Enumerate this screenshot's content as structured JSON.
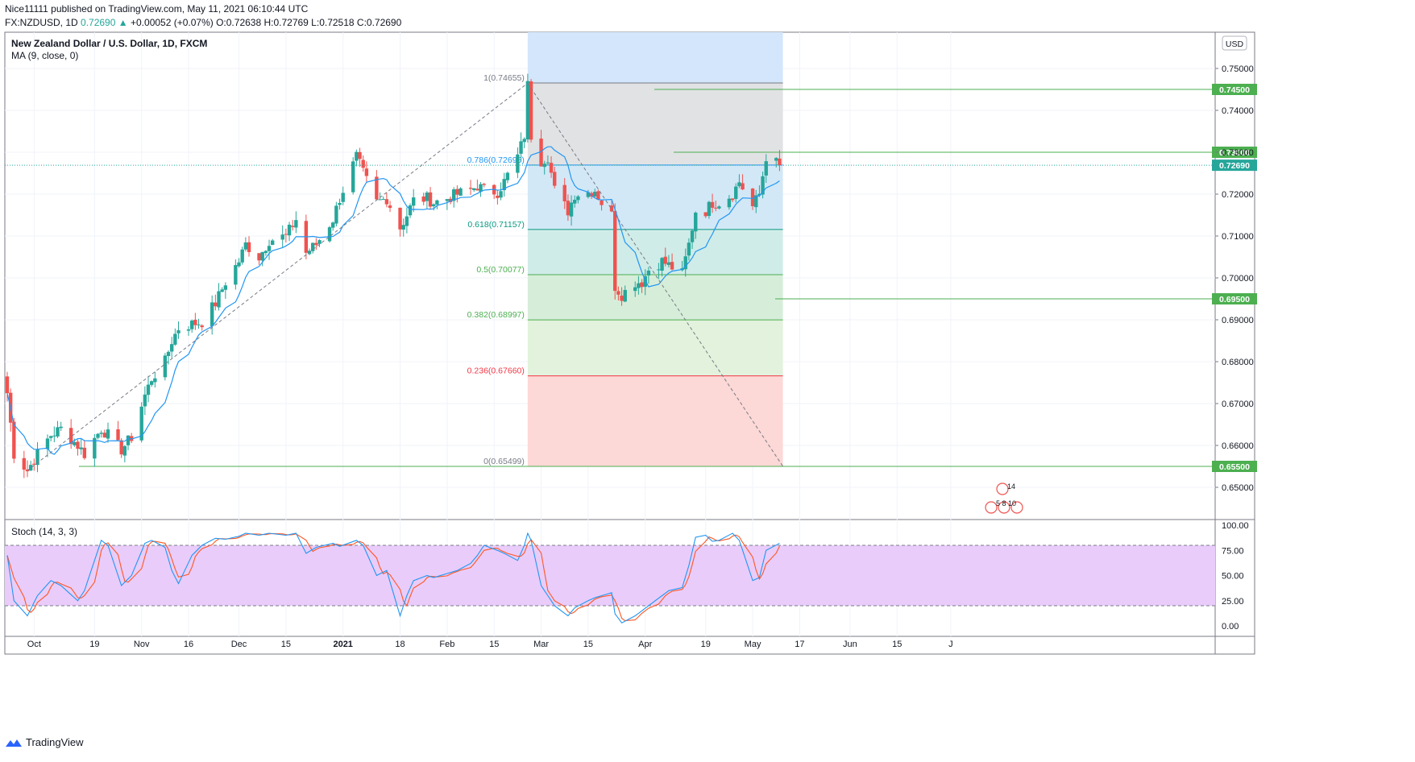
{
  "header": {
    "publisher_line": "Nice11111 published on TradingView.com, May 11, 2021 06:10:44 UTC",
    "symbol": "FX:NZDUSD, 1D",
    "last": "0.72690",
    "change": "+0.00052 (+0.07%)",
    "ohlc": "O:0.72638 H:0.72769 L:0.72518 C:0.72690"
  },
  "legend": {
    "title": "New Zealand Dollar / U.S. Dollar, 1D, FXCM",
    "ma": "MA (9, close, 0)",
    "stoch": "Stoch (14, 3, 3)"
  },
  "currency_button": "USD",
  "brand": "TradingView",
  "colors": {
    "up": "#26a69a",
    "down": "#ef5350",
    "ma": "#2196f3",
    "stoch_k": "#2196f3",
    "stoch_d": "#ff5722",
    "level_line": "#4caf50",
    "price_line": "#26a69a"
  },
  "chart_data": {
    "type": "candlestick",
    "price_axis": {
      "min": 0.645,
      "max": 0.755,
      "ticks": [
        "0.75000",
        "0.74000",
        "0.73000",
        "0.72000",
        "0.71000",
        "0.70000",
        "0.69000",
        "0.68000",
        "0.67000",
        "0.66000",
        "0.65000"
      ]
    },
    "time_axis_labels": [
      {
        "label": "Oct",
        "d": "2020-10-01"
      },
      {
        "label": "19",
        "d": "2020-10-19"
      },
      {
        "label": "Nov",
        "d": "2020-11-02"
      },
      {
        "label": "16",
        "d": "2020-11-16"
      },
      {
        "label": "Dec",
        "d": "2020-12-01"
      },
      {
        "label": "15",
        "d": "2020-12-15"
      },
      {
        "label": "2021",
        "d": "2021-01-01"
      },
      {
        "label": "18",
        "d": "2021-01-18"
      },
      {
        "label": "Feb",
        "d": "2021-02-01"
      },
      {
        "label": "15",
        "d": "2021-02-15"
      },
      {
        "label": "Mar",
        "d": "2021-03-01"
      },
      {
        "label": "15",
        "d": "2021-03-15"
      },
      {
        "label": "Apr",
        "d": "2021-04-01"
      },
      {
        "label": "19",
        "d": "2021-04-19"
      },
      {
        "label": "May",
        "d": "2021-05-03"
      },
      {
        "label": "17",
        "d": "2021-05-17"
      },
      {
        "label": "Jun",
        "d": "2021-06-01"
      },
      {
        "label": "15",
        "d": "2021-06-15"
      },
      {
        "label": "J",
        "d": "2021-07-01"
      }
    ],
    "start_date": "2020-09-23",
    "end_date": "2021-05-11",
    "close_anchors": [
      [
        "2020-09-23",
        0.6725
      ],
      [
        "2020-09-25",
        0.658
      ],
      [
        "2020-09-29",
        0.654
      ],
      [
        "2020-10-02",
        0.658
      ],
      [
        "2020-10-06",
        0.6625
      ],
      [
        "2020-10-09",
        0.664
      ],
      [
        "2020-10-14",
        0.66
      ],
      [
        "2020-10-16",
        0.658
      ],
      [
        "2020-10-21",
        0.664
      ],
      [
        "2020-10-23",
        0.6625
      ],
      [
        "2020-10-27",
        0.659
      ],
      [
        "2020-10-30",
        0.662
      ],
      [
        "2020-11-03",
        0.672
      ],
      [
        "2020-11-05",
        0.676
      ],
      [
        "2020-11-09",
        0.68
      ],
      [
        "2020-11-11",
        0.685
      ],
      [
        "2020-11-13",
        0.688
      ],
      [
        "2020-11-17",
        0.689
      ],
      [
        "2020-11-20",
        0.6895
      ],
      [
        "2020-11-24",
        0.694
      ],
      [
        "2020-11-27",
        0.699
      ],
      [
        "2020-12-01",
        0.704
      ],
      [
        "2020-12-03",
        0.708
      ],
      [
        "2020-12-07",
        0.705
      ],
      [
        "2020-12-10",
        0.709
      ],
      [
        "2020-12-15",
        0.71
      ],
      [
        "2020-12-18",
        0.714
      ],
      [
        "2020-12-21",
        0.706
      ],
      [
        "2020-12-24",
        0.708
      ],
      [
        "2020-12-29",
        0.714
      ],
      [
        "2020-12-31",
        0.719
      ],
      [
        "2021-01-05",
        0.729
      ],
      [
        "2021-01-07",
        0.725
      ],
      [
        "2021-01-11",
        0.718
      ],
      [
        "2021-01-14",
        0.719
      ],
      [
        "2021-01-18",
        0.712
      ],
      [
        "2021-01-20",
        0.715
      ],
      [
        "2021-01-22",
        0.7185
      ],
      [
        "2021-01-26",
        0.719
      ],
      [
        "2021-01-28",
        0.718
      ],
      [
        "2021-02-01",
        0.719
      ],
      [
        "2021-02-04",
        0.72
      ],
      [
        "2021-02-08",
        0.721
      ],
      [
        "2021-02-10",
        0.722
      ],
      [
        "2021-02-12",
        0.721
      ],
      [
        "2021-02-16",
        0.7205
      ],
      [
        "2021-02-18",
        0.723
      ],
      [
        "2021-02-22",
        0.729
      ],
      [
        "2021-02-24",
        0.734
      ],
      [
        "2021-02-25",
        0.746
      ],
      [
        "2021-02-26",
        0.734
      ],
      [
        "2021-03-01",
        0.728
      ],
      [
        "2021-03-03",
        0.729
      ],
      [
        "2021-03-05",
        0.721
      ],
      [
        "2021-03-09",
        0.716
      ],
      [
        "2021-03-11",
        0.72
      ],
      [
        "2021-03-15",
        0.7205
      ],
      [
        "2021-03-17",
        0.721
      ],
      [
        "2021-03-19",
        0.718
      ],
      [
        "2021-03-22",
        0.715
      ],
      [
        "2021-03-23",
        0.698
      ],
      [
        "2021-03-25",
        0.696
      ],
      [
        "2021-03-29",
        0.699
      ],
      [
        "2021-03-31",
        0.699
      ],
      [
        "2021-04-02",
        0.702
      ],
      [
        "2021-04-06",
        0.704
      ],
      [
        "2021-04-08",
        0.703
      ],
      [
        "2021-04-12",
        0.701
      ],
      [
        "2021-04-14",
        0.708
      ],
      [
        "2021-04-16",
        0.716
      ],
      [
        "2021-04-19",
        0.716
      ],
      [
        "2021-04-21",
        0.718
      ],
      [
        "2021-04-23",
        0.718
      ],
      [
        "2021-04-27",
        0.72
      ],
      [
        "2021-04-29",
        0.723
      ],
      [
        "2021-05-03",
        0.717
      ],
      [
        "2021-05-05",
        0.72
      ],
      [
        "2021-05-07",
        0.729
      ],
      [
        "2021-05-11",
        0.7269
      ]
    ],
    "moving_average": {
      "name": "MA (9, close, 0)",
      "period": 9
    },
    "horizontal_levels": [
      {
        "price": 0.745,
        "label": "0.74500"
      },
      {
        "price": 0.73,
        "label": "0.73000"
      },
      {
        "price": 0.695,
        "label": "0.69500"
      },
      {
        "price": 0.655,
        "label": "0.65500"
      }
    ],
    "current_price": {
      "price": 0.7269,
      "label": "0.72690"
    },
    "fibonacci": {
      "from_date": "2021-02-25",
      "to_date": "2021-05-12",
      "levels": [
        {
          "ratio": "1",
          "price": 0.74655,
          "label": "1(0.74655)",
          "fill": "#e1e2e4",
          "line": "#787b86"
        },
        {
          "ratio": "0.786",
          "price": 0.72695,
          "label": "0.786(0.72695)",
          "fill": "#d2e8f6",
          "line": "#2196f3"
        },
        {
          "ratio": "0.618",
          "price": 0.71157,
          "label": "0.618(0.71157)",
          "fill": "#d0ece8",
          "line": "#089981"
        },
        {
          "ratio": "0.5",
          "price": 0.70077,
          "label": "0.5(0.70077)",
          "fill": "#d6eed9",
          "line": "#4caf50"
        },
        {
          "ratio": "0.382",
          "price": 0.68997,
          "label": "0.382(0.68997)",
          "fill": "#e2f2dc",
          "line": "#4caf50"
        },
        {
          "ratio": "0.236",
          "price": 0.6766,
          "label": "0.236(0.67660)",
          "fill": "#fcd8d6",
          "line": "#f23645"
        },
        {
          "ratio": "0",
          "price": 0.65499,
          "label": "0(0.65499)",
          "fill": "",
          "line": "#787b86"
        }
      ],
      "top_fill": "#d3e6fb"
    },
    "trend_lines": [
      {
        "from": [
          "2020-09-29",
          0.654
        ],
        "to": [
          "2021-02-25",
          0.7465
        ]
      },
      {
        "from": [
          "2021-02-25",
          0.7465
        ],
        "to": [
          "2021-05-12",
          0.655
        ]
      }
    ],
    "events": {
      "top": "14",
      "bottom": "5 8 10"
    },
    "stochastic": {
      "name": "Stoch (14, 3, 3)",
      "range": [
        0,
        100
      ],
      "upper_band": 80,
      "lower_band": 20,
      "ticks": [
        "100.00",
        "75.00",
        "50.00",
        "25.00",
        "0.00"
      ],
      "k_anchors": [
        [
          "2020-09-23",
          70
        ],
        [
          "2020-09-25",
          25
        ],
        [
          "2020-09-29",
          10
        ],
        [
          "2020-10-02",
          30
        ],
        [
          "2020-10-06",
          45
        ],
        [
          "2020-10-09",
          40
        ],
        [
          "2020-10-14",
          25
        ],
        [
          "2020-10-16",
          35
        ],
        [
          "2020-10-21",
          85
        ],
        [
          "2020-10-23",
          80
        ],
        [
          "2020-10-27",
          40
        ],
        [
          "2020-10-30",
          50
        ],
        [
          "2020-11-03",
          82
        ],
        [
          "2020-11-05",
          85
        ],
        [
          "2020-11-09",
          78
        ],
        [
          "2020-11-11",
          55
        ],
        [
          "2020-11-13",
          42
        ],
        [
          "2020-11-17",
          70
        ],
        [
          "2020-11-20",
          80
        ],
        [
          "2020-11-24",
          87
        ],
        [
          "2020-11-27",
          86
        ],
        [
          "2020-12-01",
          89
        ],
        [
          "2020-12-03",
          92
        ],
        [
          "2020-12-07",
          90
        ],
        [
          "2020-12-10",
          92
        ],
        [
          "2020-12-15",
          90
        ],
        [
          "2020-12-18",
          92
        ],
        [
          "2020-12-21",
          72
        ],
        [
          "2020-12-24",
          78
        ],
        [
          "2020-12-29",
          82
        ],
        [
          "2020-12-31",
          79
        ],
        [
          "2021-01-05",
          85
        ],
        [
          "2021-01-07",
          80
        ],
        [
          "2021-01-11",
          50
        ],
        [
          "2021-01-14",
          55
        ],
        [
          "2021-01-18",
          10
        ],
        [
          "2021-01-20",
          30
        ],
        [
          "2021-01-22",
          45
        ],
        [
          "2021-01-26",
          50
        ],
        [
          "2021-01-28",
          48
        ],
        [
          "2021-02-01",
          52
        ],
        [
          "2021-02-04",
          55
        ],
        [
          "2021-02-08",
          62
        ],
        [
          "2021-02-10",
          70
        ],
        [
          "2021-02-12",
          80
        ],
        [
          "2021-02-16",
          75
        ],
        [
          "2021-02-18",
          72
        ],
        [
          "2021-02-22",
          65
        ],
        [
          "2021-02-24",
          80
        ],
        [
          "2021-02-25",
          92
        ],
        [
          "2021-02-26",
          85
        ],
        [
          "2021-03-01",
          40
        ],
        [
          "2021-03-03",
          30
        ],
        [
          "2021-03-05",
          20
        ],
        [
          "2021-03-09",
          10
        ],
        [
          "2021-03-11",
          18
        ],
        [
          "2021-03-15",
          25
        ],
        [
          "2021-03-17",
          28
        ],
        [
          "2021-03-19",
          30
        ],
        [
          "2021-03-22",
          33
        ],
        [
          "2021-03-23",
          12
        ],
        [
          "2021-03-25",
          3
        ],
        [
          "2021-03-29",
          10
        ],
        [
          "2021-03-31",
          15
        ],
        [
          "2021-04-02",
          20
        ],
        [
          "2021-04-06",
          30
        ],
        [
          "2021-04-08",
          35
        ],
        [
          "2021-04-12",
          38
        ],
        [
          "2021-04-14",
          60
        ],
        [
          "2021-04-16",
          88
        ],
        [
          "2021-04-19",
          90
        ],
        [
          "2021-04-21",
          84
        ],
        [
          "2021-04-23",
          85
        ],
        [
          "2021-04-27",
          92
        ],
        [
          "2021-04-29",
          85
        ],
        [
          "2021-05-03",
          45
        ],
        [
          "2021-05-05",
          48
        ],
        [
          "2021-05-07",
          75
        ],
        [
          "2021-05-11",
          82
        ]
      ]
    }
  }
}
